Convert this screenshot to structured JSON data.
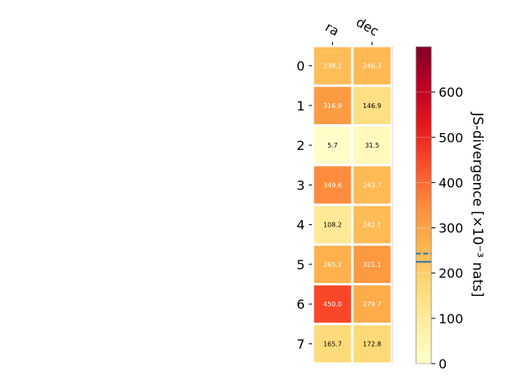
{
  "chart_data": {
    "type": "heatmap",
    "columns": [
      "ra",
      "dec"
    ],
    "rows": [
      "0",
      "1",
      "2",
      "3",
      "4",
      "5",
      "6",
      "7"
    ],
    "values": [
      [
        238.2,
        246.3
      ],
      [
        316.9,
        146.9
      ],
      [
        5.7,
        31.5
      ],
      [
        349.6,
        243.7
      ],
      [
        108.2,
        242.1
      ],
      [
        265.2,
        321.1
      ],
      [
        450.0,
        279.7
      ],
      [
        165.7,
        172.8
      ]
    ],
    "cell_labels": [
      [
        "238.2",
        "246.3"
      ],
      [
        "316.9",
        "146.9"
      ],
      [
        "5.7",
        "31.5"
      ],
      [
        "349.6",
        "243.7"
      ],
      [
        "108.2",
        "242.1"
      ],
      [
        "265.2",
        "321.1"
      ],
      [
        "450.0",
        "279.7"
      ],
      [
        "165.7",
        "172.8"
      ]
    ],
    "colorbar": {
      "label": "JS-divergence [×10⁻³ nats]",
      "range": [
        0,
        700
      ],
      "ticks": [
        "0",
        "100",
        "200",
        "300",
        "400",
        "500",
        "600"
      ],
      "tick_values": [
        0,
        100,
        200,
        300,
        400,
        500,
        600
      ],
      "reference_lines": [
        225,
        243
      ],
      "colormap": "YlOrRd"
    },
    "colors": {
      "reference_line": "#1f6fb4",
      "cell_border": "#ffffff"
    }
  }
}
